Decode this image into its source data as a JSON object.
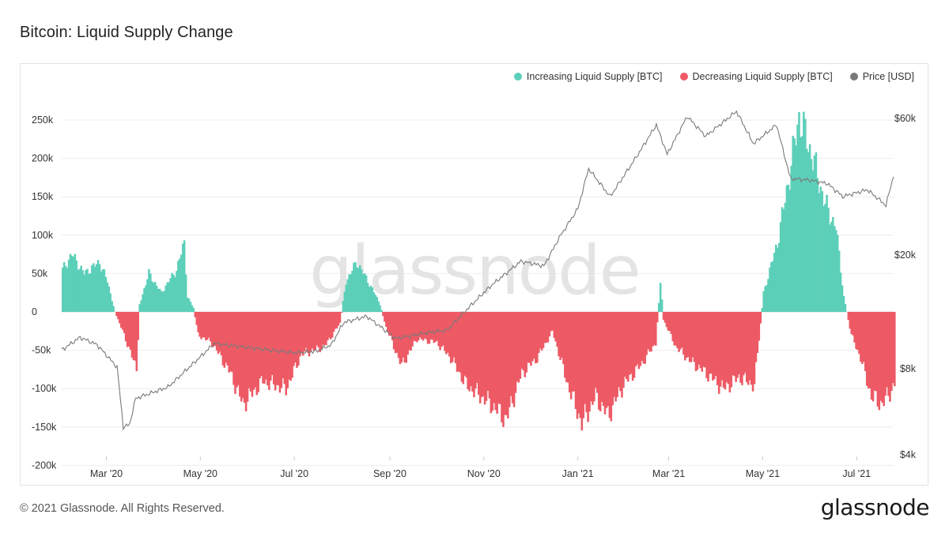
{
  "title": "Bitcoin: Liquid Supply Change",
  "footer": {
    "copyright": "© 2021 Glassnode. All Rights Reserved.",
    "logo_text": "glassnode"
  },
  "watermark_text": "glassnode",
  "colors": {
    "increasing": "#5ccfb9",
    "decreasing": "#ed5a65",
    "price": "#7a7a7a"
  },
  "chart_data": {
    "type": "bar",
    "title": "Bitcoin: Liquid Supply Change",
    "legend": [
      "Increasing Liquid Supply [BTC]",
      "Decreasing Liquid Supply [BTC]",
      "Price [USD]"
    ],
    "legend_position": "top-right",
    "x_ticks": [
      "Mar '20",
      "May '20",
      "Jul '20",
      "Sep '20",
      "Nov '20",
      "Jan '21",
      "Mar '21",
      "May '21",
      "Jul '21"
    ],
    "x_range": [
      "2020-02-01",
      "2021-07-25"
    ],
    "y_left": {
      "ticks": [
        "250k",
        "200k",
        "150k",
        "100k",
        "50k",
        "0",
        "-50k",
        "-100k",
        "-150k",
        "-200k"
      ],
      "tick_values": [
        250000,
        200000,
        150000,
        100000,
        50000,
        0,
        -50000,
        -100000,
        -150000,
        -200000
      ],
      "range": [
        -200000,
        260000
      ]
    },
    "y_right": {
      "ticks": [
        "$60k",
        "$20k",
        "$8k",
        "$4k"
      ],
      "tick_values": [
        60000,
        20000,
        8000,
        4000
      ],
      "scale": "log"
    },
    "grid": true,
    "series": [
      {
        "name": "Liquid Supply Change [BTC]",
        "keypoints": [
          [
            "2020-02-01",
            55000
          ],
          [
            "2020-02-07",
            75000
          ],
          [
            "2020-02-15",
            50000
          ],
          [
            "2020-02-25",
            65000
          ],
          [
            "2020-03-01",
            40000
          ],
          [
            "2020-03-06",
            0
          ],
          [
            "2020-03-12",
            -30000
          ],
          [
            "2020-03-20",
            -75000
          ],
          [
            "2020-03-22",
            10000
          ],
          [
            "2020-03-28",
            50000
          ],
          [
            "2020-04-05",
            25000
          ],
          [
            "2020-04-15",
            55000
          ],
          [
            "2020-04-20",
            90000
          ],
          [
            "2020-04-22",
            20000
          ],
          [
            "2020-04-26",
            5000
          ],
          [
            "2020-04-29",
            -30000
          ],
          [
            "2020-05-08",
            -40000
          ],
          [
            "2020-05-20",
            -80000
          ],
          [
            "2020-05-28",
            -120000
          ],
          [
            "2020-06-10",
            -90000
          ],
          [
            "2020-06-25",
            -100000
          ],
          [
            "2020-07-05",
            -55000
          ],
          [
            "2020-07-20",
            -45000
          ],
          [
            "2020-07-30",
            -15000
          ],
          [
            "2020-08-03",
            40000
          ],
          [
            "2020-08-10",
            65000
          ],
          [
            "2020-08-20",
            30000
          ],
          [
            "2020-08-25",
            10000
          ],
          [
            "2020-08-29",
            -20000
          ],
          [
            "2020-09-08",
            -70000
          ],
          [
            "2020-09-18",
            -35000
          ],
          [
            "2020-10-01",
            -40000
          ],
          [
            "2020-10-10",
            -60000
          ],
          [
            "2020-10-20",
            -95000
          ],
          [
            "2020-11-05",
            -120000
          ],
          [
            "2020-11-15",
            -140000
          ],
          [
            "2020-11-25",
            -80000
          ],
          [
            "2020-12-05",
            -60000
          ],
          [
            "2020-12-15",
            -25000
          ],
          [
            "2020-12-25",
            -95000
          ],
          [
            "2021-01-03",
            -145000
          ],
          [
            "2021-01-12",
            -110000
          ],
          [
            "2021-01-20",
            -135000
          ],
          [
            "2021-01-30",
            -95000
          ],
          [
            "2021-02-10",
            -70000
          ],
          [
            "2021-02-20",
            -40000
          ],
          [
            "2021-02-23",
            40000
          ],
          [
            "2021-02-25",
            -10000
          ],
          [
            "2021-03-05",
            -45000
          ],
          [
            "2021-03-15",
            -65000
          ],
          [
            "2021-03-25",
            -80000
          ],
          [
            "2021-04-05",
            -100000
          ],
          [
            "2021-04-15",
            -85000
          ],
          [
            "2021-04-25",
            -95000
          ],
          [
            "2021-05-01",
            25000
          ],
          [
            "2021-05-10",
            90000
          ],
          [
            "2021-05-18",
            180000
          ],
          [
            "2021-05-24",
            255000
          ],
          [
            "2021-06-02",
            200000
          ],
          [
            "2021-06-10",
            140000
          ],
          [
            "2021-06-17",
            110000
          ],
          [
            "2021-06-22",
            20000
          ],
          [
            "2021-06-27",
            -30000
          ],
          [
            "2021-07-03",
            -60000
          ],
          [
            "2021-07-10",
            -110000
          ],
          [
            "2021-07-17",
            -120000
          ],
          [
            "2021-07-25",
            -95000
          ]
        ]
      },
      {
        "name": "Price [USD]",
        "axis": "right",
        "keypoints": [
          [
            "2020-02-01",
            9300
          ],
          [
            "2020-02-13",
            10300
          ],
          [
            "2020-02-24",
            9700
          ],
          [
            "2020-03-08",
            8100
          ],
          [
            "2020-03-12",
            5000
          ],
          [
            "2020-03-16",
            5100
          ],
          [
            "2020-03-20",
            6300
          ],
          [
            "2020-04-10",
            6900
          ],
          [
            "2020-04-30",
            8700
          ],
          [
            "2020-05-10",
            9800
          ],
          [
            "2020-05-31",
            9500
          ],
          [
            "2020-06-15",
            9300
          ],
          [
            "2020-07-01",
            9100
          ],
          [
            "2020-07-15",
            9200
          ],
          [
            "2020-07-25",
            9700
          ],
          [
            "2020-08-02",
            11600
          ],
          [
            "2020-08-17",
            12200
          ],
          [
            "2020-09-05",
            10200
          ],
          [
            "2020-09-25",
            10700
          ],
          [
            "2020-10-08",
            10900
          ],
          [
            "2020-10-21",
            12900
          ],
          [
            "2020-11-05",
            15500
          ],
          [
            "2020-11-25",
            19000
          ],
          [
            "2020-12-10",
            18300
          ],
          [
            "2020-12-20",
            23000
          ],
          [
            "2021-01-01",
            29000
          ],
          [
            "2021-01-08",
            40000
          ],
          [
            "2021-01-22",
            32000
          ],
          [
            "2021-02-08",
            44000
          ],
          [
            "2021-02-21",
            57000
          ],
          [
            "2021-02-28",
            45000
          ],
          [
            "2021-03-13",
            61000
          ],
          [
            "2021-03-25",
            52000
          ],
          [
            "2021-04-14",
            63500
          ],
          [
            "2021-04-25",
            49000
          ],
          [
            "2021-05-10",
            57000
          ],
          [
            "2021-05-19",
            37000
          ],
          [
            "2021-06-01",
            36500
          ],
          [
            "2021-06-12",
            35500
          ],
          [
            "2021-06-22",
            32000
          ],
          [
            "2021-07-08",
            33800
          ],
          [
            "2021-07-20",
            29800
          ],
          [
            "2021-07-25",
            38000
          ]
        ]
      }
    ]
  }
}
